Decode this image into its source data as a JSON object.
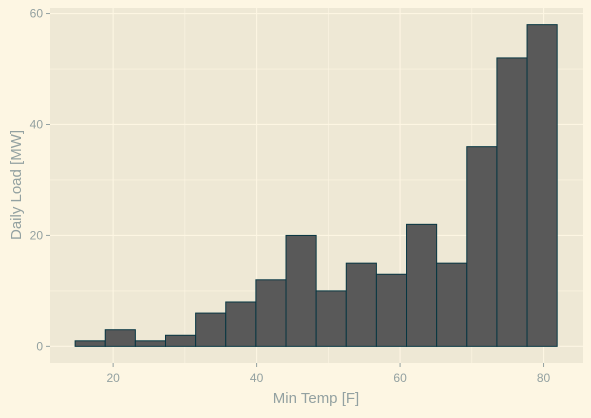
{
  "chart_data": {
    "type": "histogram",
    "title": "",
    "xlabel": "Min Temp [F]",
    "ylabel": "Daily Load [MW]",
    "xlim": [
      11.2,
      85.5
    ],
    "ylim": [
      -3,
      61
    ],
    "x_ticks": [
      20,
      40,
      60,
      80
    ],
    "y_ticks": [
      0,
      20,
      40,
      60
    ],
    "x_minor_ticks": [
      30,
      50,
      70
    ],
    "y_minor_ticks": [
      10,
      30,
      50
    ],
    "grid": true,
    "bins": [
      {
        "x0": 14.7,
        "x1": 18.9,
        "value": 1
      },
      {
        "x0": 18.9,
        "x1": 23.1,
        "value": 3
      },
      {
        "x0": 23.1,
        "x1": 27.3,
        "value": 1
      },
      {
        "x0": 27.3,
        "x1": 31.5,
        "value": 2
      },
      {
        "x0": 31.5,
        "x1": 35.7,
        "value": 6
      },
      {
        "x0": 35.7,
        "x1": 39.9,
        "value": 8
      },
      {
        "x0": 39.9,
        "x1": 44.1,
        "value": 12
      },
      {
        "x0": 44.1,
        "x1": 48.3,
        "value": 20
      },
      {
        "x0": 48.3,
        "x1": 52.5,
        "value": 10
      },
      {
        "x0": 52.5,
        "x1": 56.7,
        "value": 15
      },
      {
        "x0": 56.7,
        "x1": 60.9,
        "value": 13
      },
      {
        "x0": 60.9,
        "x1": 65.1,
        "value": 22
      },
      {
        "x0": 65.1,
        "x1": 69.3,
        "value": 15
      },
      {
        "x0": 69.3,
        "x1": 73.5,
        "value": 36
      },
      {
        "x0": 73.5,
        "x1": 77.7,
        "value": 52
      },
      {
        "x0": 77.7,
        "x1": 81.9,
        "value": 58
      }
    ],
    "colors": {
      "background": "#FDF6E3",
      "panel": "#EEE8D5",
      "grid": "#FDF6E3",
      "bar_fill": "#595959",
      "bar_stroke": "#073642",
      "text": "#93A1A1"
    }
  }
}
